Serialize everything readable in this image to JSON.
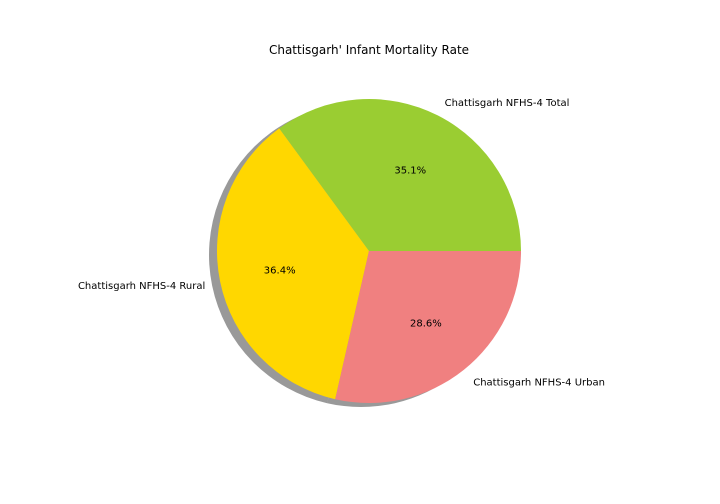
{
  "chart_data": {
    "type": "pie",
    "title": "Chattisgarh' Infant Mortality Rate",
    "shadow": true,
    "slices": [
      {
        "label": "Chattisgarh NFHS-4 Total",
        "value": 35.1,
        "pct_label": "35.1%",
        "color": "#9ACD32"
      },
      {
        "label": "Chattisgarh NFHS-4 Rural",
        "value": 36.4,
        "pct_label": "36.4%",
        "color": "#FFD700"
      },
      {
        "label": "Chattisgarh NFHS-4 Urban",
        "value": 28.6,
        "pct_label": "28.6%",
        "color": "#F08080"
      }
    ]
  }
}
